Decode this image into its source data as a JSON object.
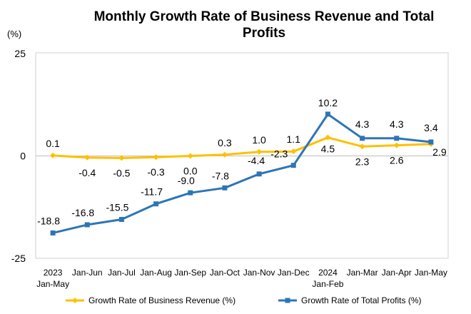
{
  "chart_data": {
    "type": "line",
    "title": "Monthly Growth Rate of Business Revenue and Total Profits",
    "ylabel": "(%)",
    "xlabel": "",
    "ylim": [
      -25,
      25
    ],
    "yticks": [
      "25",
      "0",
      "-25"
    ],
    "ytick_values": [
      25,
      0,
      -25
    ],
    "grid": false,
    "legend_position": "bottom",
    "categories": [
      [
        "2023",
        "Jan-May"
      ],
      [
        "Jan-Jun"
      ],
      [
        "Jan-Jul"
      ],
      [
        "Jan-Aug"
      ],
      [
        "Jan-Sep"
      ],
      [
        "Jan-Oct"
      ],
      [
        "Jan-Nov"
      ],
      [
        "Jan-Dec"
      ],
      [
        "2024",
        "Jan-Feb"
      ],
      [
        "Jan-Mar"
      ],
      [
        "Jan-Apr"
      ],
      [
        "Jan-May"
      ]
    ],
    "series": [
      {
        "name": "Growth Rate of Business Revenue (%)",
        "color": "#FFC000",
        "marker": "diamond",
        "values": [
          0.1,
          -0.4,
          -0.5,
          -0.3,
          0.0,
          0.3,
          1.0,
          1.1,
          4.5,
          2.3,
          2.6,
          2.9
        ],
        "labels": [
          "0.1",
          "-0.4",
          "-0.5",
          "-0.3",
          "0.0",
          "0.3",
          "1.0",
          "1.1",
          "4.5",
          "2.3",
          "2.6",
          "2.9"
        ]
      },
      {
        "name": "Growth Rate of Total Profits (%)",
        "color": "#2E75B6",
        "marker": "square",
        "values": [
          -18.8,
          -16.8,
          -15.5,
          -11.7,
          -9.0,
          -7.8,
          -4.4,
          -2.3,
          10.2,
          4.3,
          4.3,
          3.4
        ],
        "labels": [
          "-18.8",
          "-16.8",
          "-15.5",
          "-11.7",
          "-9.0",
          "-7.8",
          "-4.4",
          "-2.3",
          "10.2",
          "4.3",
          "4.3",
          "3.4"
        ]
      }
    ]
  }
}
